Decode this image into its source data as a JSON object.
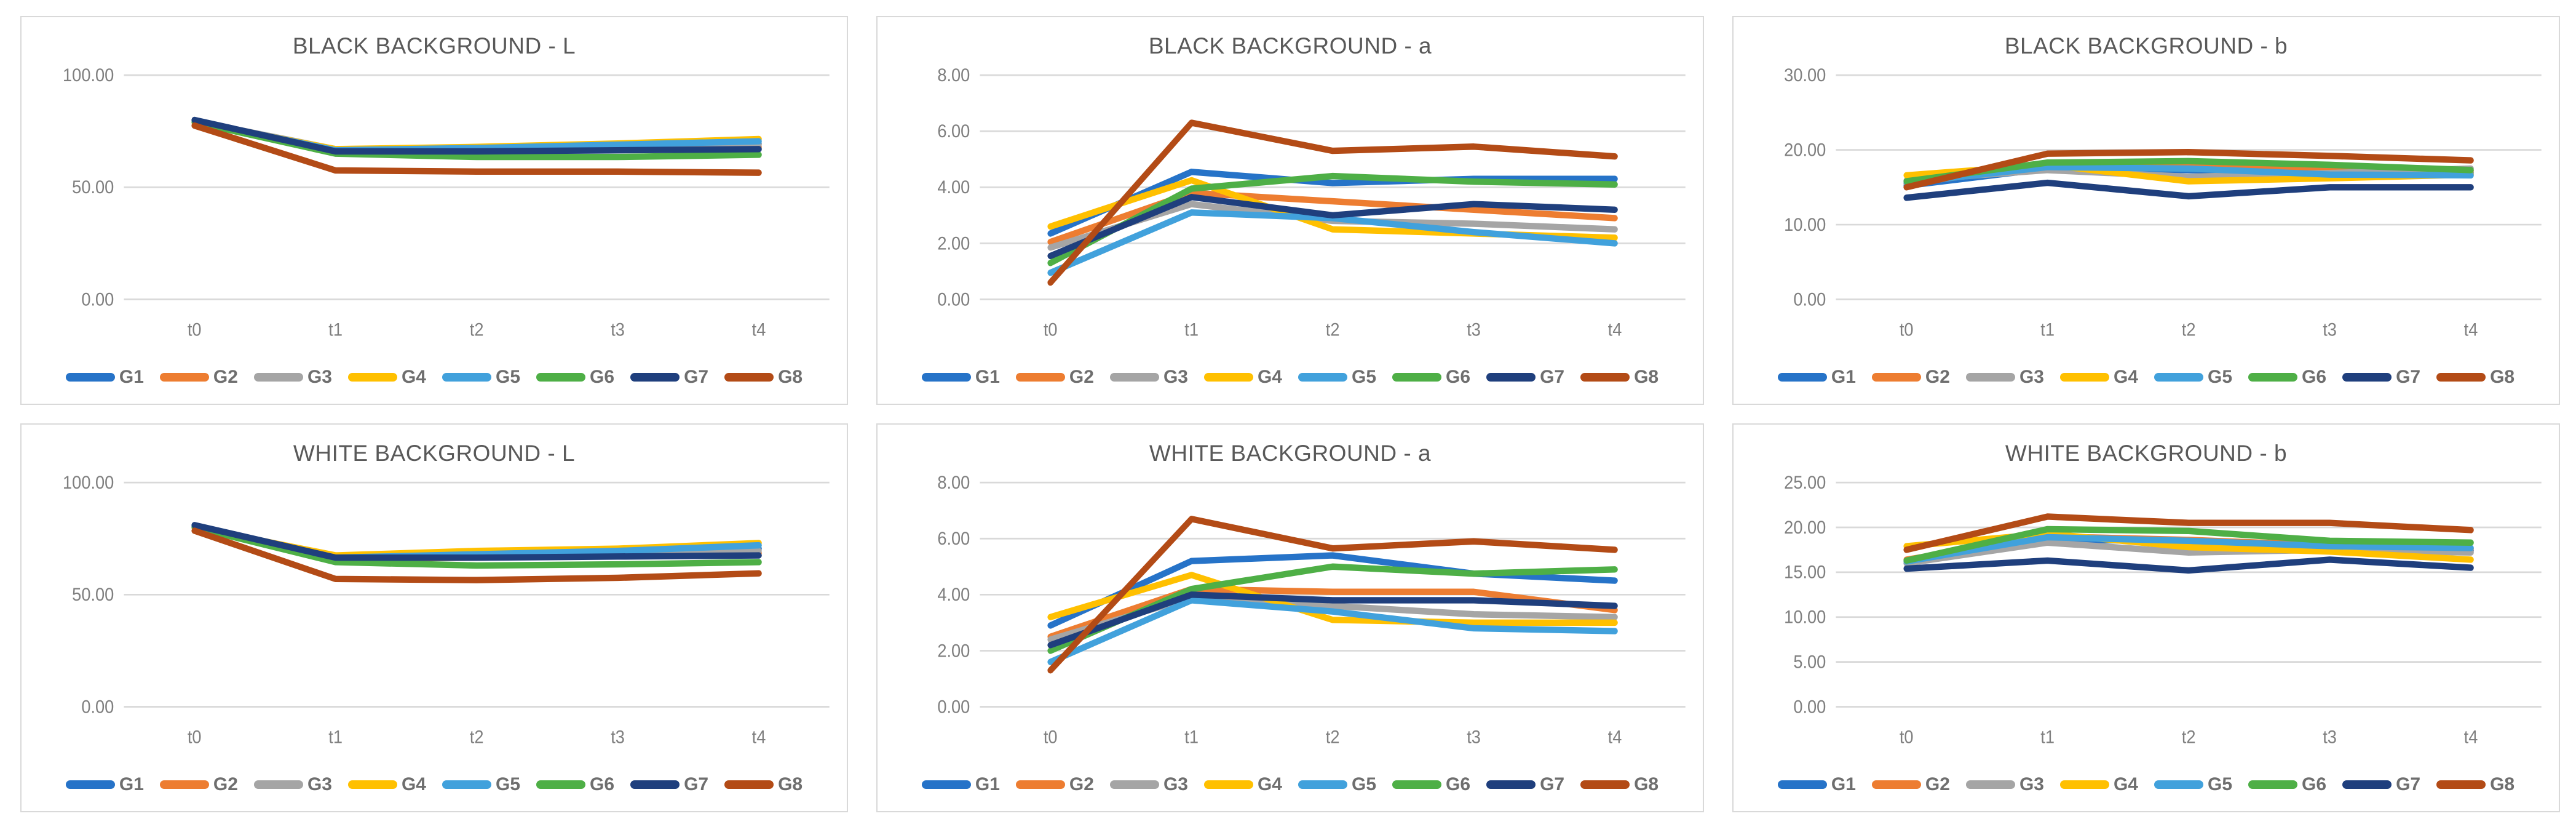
{
  "page": {
    "background": "#ffffff",
    "panel_border": "#d9d9d9",
    "grid_color": "#d9d9d9",
    "title_color": "#595959",
    "tick_label_color": "#7f7f7f",
    "legend_label_color": "#6e6e6e"
  },
  "palette": {
    "G1": "#2673C8",
    "G2": "#ED7D31",
    "G3": "#A5A5A5",
    "G4": "#FFC000",
    "G5": "#41A1DC",
    "G6": "#4EAF46",
    "G7": "#1F3F7D",
    "G8": "#B34B16"
  },
  "series_order": [
    "G1",
    "G2",
    "G3",
    "G4",
    "G5",
    "G6",
    "G7",
    "G8"
  ],
  "chart_data": [
    {
      "type": "line",
      "title": "BLACK BACKGROUND - L",
      "categories": [
        "t0",
        "t1",
        "t2",
        "t3",
        "t4"
      ],
      "ylim": [
        0,
        100
      ],
      "yticks": [
        {
          "value": 100,
          "label": "100.00"
        },
        {
          "value": 50,
          "label": "50.00"
        },
        {
          "value": 0,
          "label": "0.00"
        }
      ],
      "grid": true,
      "legend_position": "bottom",
      "series": [
        {
          "name": "G1",
          "values": [
            79.5,
            66.5,
            67.0,
            68.0,
            69.5
          ]
        },
        {
          "name": "G2",
          "values": [
            79.0,
            66.0,
            66.5,
            67.0,
            68.0
          ]
        },
        {
          "name": "G3",
          "values": [
            79.5,
            67.0,
            67.5,
            68.0,
            69.0
          ]
        },
        {
          "name": "G4",
          "values": [
            79.0,
            67.0,
            68.0,
            69.5,
            71.5
          ]
        },
        {
          "name": "G5",
          "values": [
            79.5,
            66.5,
            67.5,
            69.0,
            70.5
          ]
        },
        {
          "name": "G6",
          "values": [
            79.0,
            65.0,
            63.5,
            63.5,
            64.5
          ]
        },
        {
          "name": "G7",
          "values": [
            80.0,
            66.0,
            66.0,
            66.5,
            67.0
          ]
        },
        {
          "name": "G8",
          "values": [
            77.5,
            57.5,
            57.0,
            57.0,
            56.5
          ]
        }
      ]
    },
    {
      "type": "line",
      "title": "BLACK BACKGROUND - a",
      "categories": [
        "t0",
        "t1",
        "t2",
        "t3",
        "t4"
      ],
      "ylim": [
        0,
        8
      ],
      "yticks": [
        {
          "value": 8,
          "label": "8.00"
        },
        {
          "value": 6,
          "label": "6.00"
        },
        {
          "value": 4,
          "label": "4.00"
        },
        {
          "value": 2,
          "label": "2.00"
        },
        {
          "value": 0,
          "label": "0.00"
        }
      ],
      "grid": true,
      "legend_position": "bottom",
      "series": [
        {
          "name": "G1",
          "values": [
            2.35,
            4.55,
            4.15,
            4.3,
            4.3
          ]
        },
        {
          "name": "G2",
          "values": [
            2.05,
            3.8,
            3.5,
            3.2,
            2.9
          ]
        },
        {
          "name": "G3",
          "values": [
            1.85,
            3.4,
            2.8,
            2.7,
            2.5
          ]
        },
        {
          "name": "G4",
          "values": [
            2.6,
            4.25,
            2.5,
            2.35,
            2.2
          ]
        },
        {
          "name": "G5",
          "values": [
            0.95,
            3.1,
            2.9,
            2.4,
            2.0
          ]
        },
        {
          "name": "G6",
          "values": [
            1.3,
            3.95,
            4.4,
            4.2,
            4.1
          ]
        },
        {
          "name": "G7",
          "values": [
            1.55,
            3.65,
            3.0,
            3.4,
            3.2
          ]
        },
        {
          "name": "G8",
          "values": [
            0.6,
            6.3,
            5.3,
            5.45,
            5.1
          ]
        }
      ]
    },
    {
      "type": "line",
      "title": "BLACK BACKGROUND - b",
      "categories": [
        "t0",
        "t1",
        "t2",
        "t3",
        "t4"
      ],
      "ylim": [
        0,
        30
      ],
      "yticks": [
        {
          "value": 30,
          "label": "30.00"
        },
        {
          "value": 20,
          "label": "20.00"
        },
        {
          "value": 10,
          "label": "10.00"
        },
        {
          "value": 0,
          "label": "0.00"
        }
      ],
      "grid": true,
      "legend_position": "bottom",
      "series": [
        {
          "name": "G1",
          "values": [
            15.2,
            17.5,
            17.3,
            17.0,
            16.9
          ]
        },
        {
          "name": "G2",
          "values": [
            15.5,
            17.9,
            17.8,
            17.4,
            17.2
          ]
        },
        {
          "name": "G3",
          "values": [
            15.9,
            17.3,
            16.4,
            16.9,
            17.5
          ]
        },
        {
          "name": "G4",
          "values": [
            16.6,
            18.0,
            15.8,
            16.2,
            16.7
          ]
        },
        {
          "name": "G5",
          "values": [
            15.6,
            17.7,
            17.5,
            16.7,
            16.6
          ]
        },
        {
          "name": "G6",
          "values": [
            15.8,
            18.3,
            18.5,
            18.0,
            17.3
          ]
        },
        {
          "name": "G7",
          "values": [
            13.6,
            15.6,
            13.8,
            15.0,
            15.0
          ]
        },
        {
          "name": "G8",
          "values": [
            15.0,
            19.5,
            19.7,
            19.2,
            18.6
          ]
        }
      ]
    },
    {
      "type": "line",
      "title": "WHITE BACKGROUND - L",
      "categories": [
        "t0",
        "t1",
        "t2",
        "t3",
        "t4"
      ],
      "ylim": [
        0,
        100
      ],
      "yticks": [
        {
          "value": 100,
          "label": "100.00"
        },
        {
          "value": 50,
          "label": "50.00"
        },
        {
          "value": 0,
          "label": "0.00"
        }
      ],
      "grid": true,
      "legend_position": "bottom",
      "series": [
        {
          "name": "G1",
          "values": [
            80.5,
            66.5,
            67.5,
            68.5,
            70.5
          ]
        },
        {
          "name": "G2",
          "values": [
            80.0,
            66.0,
            66.5,
            67.5,
            68.5
          ]
        },
        {
          "name": "G3",
          "values": [
            80.5,
            67.0,
            67.5,
            68.5,
            69.5
          ]
        },
        {
          "name": "G4",
          "values": [
            80.0,
            67.5,
            69.5,
            70.5,
            73.0
          ]
        },
        {
          "name": "G5",
          "values": [
            80.5,
            66.5,
            68.0,
            69.5,
            72.0
          ]
        },
        {
          "name": "G6",
          "values": [
            80.0,
            64.5,
            63.0,
            63.5,
            64.5
          ]
        },
        {
          "name": "G7",
          "values": [
            81.0,
            66.5,
            66.5,
            67.0,
            67.5
          ]
        },
        {
          "name": "G8",
          "values": [
            78.5,
            57.0,
            56.5,
            57.5,
            59.5
          ]
        }
      ]
    },
    {
      "type": "line",
      "title": "WHITE BACKGROUND - a",
      "categories": [
        "t0",
        "t1",
        "t2",
        "t3",
        "t4"
      ],
      "ylim": [
        0,
        8
      ],
      "yticks": [
        {
          "value": 8,
          "label": "8.00"
        },
        {
          "value": 6,
          "label": "6.00"
        },
        {
          "value": 4,
          "label": "4.00"
        },
        {
          "value": 2,
          "label": "2.00"
        },
        {
          "value": 0,
          "label": "0.00"
        }
      ],
      "grid": true,
      "legend_position": "bottom",
      "series": [
        {
          "name": "G1",
          "values": [
            2.9,
            5.2,
            5.4,
            4.75,
            4.5
          ]
        },
        {
          "name": "G2",
          "values": [
            2.5,
            4.2,
            4.1,
            4.1,
            3.45
          ]
        },
        {
          "name": "G3",
          "values": [
            2.4,
            3.9,
            3.6,
            3.3,
            3.2
          ]
        },
        {
          "name": "G4",
          "values": [
            3.2,
            4.7,
            3.1,
            3.0,
            3.0
          ]
        },
        {
          "name": "G5",
          "values": [
            1.6,
            3.8,
            3.4,
            2.8,
            2.7
          ]
        },
        {
          "name": "G6",
          "values": [
            2.0,
            4.2,
            5.0,
            4.75,
            4.9
          ]
        },
        {
          "name": "G7",
          "values": [
            2.2,
            4.0,
            3.8,
            3.8,
            3.6
          ]
        },
        {
          "name": "G8",
          "values": [
            1.3,
            6.7,
            5.65,
            5.9,
            5.6
          ]
        }
      ]
    },
    {
      "type": "line",
      "title": "WHITE BACKGROUND - b",
      "categories": [
        "t0",
        "t1",
        "t2",
        "t3",
        "t4"
      ],
      "ylim": [
        0,
        25
      ],
      "yticks": [
        {
          "value": 25,
          "label": "25.00"
        },
        {
          "value": 20,
          "label": "20.00"
        },
        {
          "value": 15,
          "label": "15.00"
        },
        {
          "value": 10,
          "label": "10.00"
        },
        {
          "value": 5,
          "label": "5.00"
        },
        {
          "value": 0,
          "label": "0.00"
        }
      ],
      "grid": true,
      "legend_position": "bottom",
      "series": [
        {
          "name": "G1",
          "values": [
            16.0,
            18.7,
            18.4,
            17.8,
            17.4
          ]
        },
        {
          "name": "G2",
          "values": [
            16.4,
            19.0,
            18.6,
            18.0,
            17.6
          ]
        },
        {
          "name": "G3",
          "values": [
            16.0,
            18.3,
            17.2,
            17.5,
            17.2
          ]
        },
        {
          "name": "G4",
          "values": [
            17.9,
            19.3,
            17.8,
            17.3,
            16.4
          ]
        },
        {
          "name": "G5",
          "values": [
            16.2,
            18.9,
            18.5,
            17.9,
            17.7
          ]
        },
        {
          "name": "G6",
          "values": [
            16.3,
            19.8,
            19.6,
            18.5,
            18.3
          ]
        },
        {
          "name": "G7",
          "values": [
            15.4,
            16.3,
            15.2,
            16.4,
            15.5
          ]
        },
        {
          "name": "G8",
          "values": [
            17.5,
            21.2,
            20.5,
            20.5,
            19.7
          ]
        }
      ]
    }
  ]
}
